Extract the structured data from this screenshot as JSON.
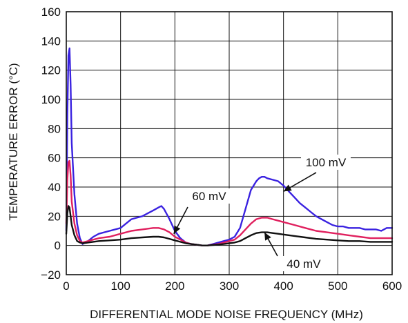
{
  "chart_data": {
    "type": "line",
    "title": "",
    "xlabel": "DIFFERENTIAL MODE NOISE FREQUENCY (MHz)",
    "ylabel": "TEMPERATURE ERROR (°C)",
    "xlim": [
      0,
      600
    ],
    "ylim": [
      -20,
      160
    ],
    "xticks": [
      0,
      100,
      200,
      300,
      400,
      500,
      600
    ],
    "yticks": [
      -20,
      0,
      20,
      40,
      60,
      80,
      100,
      120,
      140,
      160
    ],
    "ytick_labels": [
      "−20",
      "0",
      "20",
      "40",
      "60",
      "80",
      "100",
      "120",
      "140",
      "160"
    ],
    "grid": true,
    "legend": "none",
    "series": [
      {
        "name": "100 mV",
        "color": "#3a22e0",
        "x": [
          0,
          2,
          4,
          6,
          8,
          10,
          15,
          20,
          25,
          30,
          40,
          50,
          60,
          80,
          100,
          110,
          120,
          130,
          140,
          150,
          160,
          170,
          175,
          180,
          190,
          200,
          210,
          220,
          230,
          240,
          250,
          260,
          270,
          280,
          290,
          300,
          310,
          320,
          330,
          340,
          350,
          355,
          360,
          365,
          370,
          380,
          390,
          400,
          410,
          420,
          430,
          440,
          450,
          460,
          470,
          480,
          490,
          500,
          510,
          520,
          530,
          540,
          550,
          560,
          570,
          580,
          590,
          600
        ],
        "y": [
          10,
          90,
          130,
          135,
          110,
          70,
          35,
          15,
          5,
          1,
          3,
          6,
          8,
          10,
          12,
          15,
          18,
          19,
          20,
          22,
          24,
          26,
          27,
          25,
          18,
          10,
          5,
          2,
          1,
          0.5,
          0,
          0,
          1,
          2,
          3,
          4,
          6,
          12,
          25,
          38,
          44,
          46,
          47,
          47,
          46,
          45,
          44,
          41,
          37,
          33,
          29,
          26,
          23,
          20,
          18,
          16,
          14,
          13,
          13,
          12,
          12,
          12,
          11,
          11,
          11,
          10,
          12,
          12
        ]
      },
      {
        "name": "60 mV",
        "color": "#e0205e",
        "x": [
          0,
          2,
          4,
          6,
          8,
          10,
          15,
          20,
          25,
          30,
          40,
          50,
          60,
          80,
          100,
          120,
          140,
          160,
          170,
          180,
          190,
          200,
          210,
          220,
          230,
          240,
          250,
          260,
          270,
          280,
          290,
          300,
          310,
          320,
          330,
          340,
          350,
          360,
          370,
          380,
          390,
          400,
          420,
          440,
          460,
          480,
          500,
          520,
          540,
          560,
          580,
          600
        ],
        "y": [
          15,
          45,
          57,
          58,
          48,
          30,
          15,
          7,
          3,
          2,
          3,
          4,
          5,
          6,
          8,
          10,
          11,
          12,
          12,
          11,
          9,
          6,
          4,
          2,
          1,
          0.5,
          0,
          0,
          0.5,
          1,
          2,
          3,
          4,
          7,
          11,
          15,
          18,
          19,
          19,
          18,
          17,
          16,
          14,
          12,
          10,
          9,
          8,
          7,
          6,
          5,
          5,
          5
        ]
      },
      {
        "name": "40 mV",
        "color": "#111111",
        "x": [
          0,
          2,
          4,
          6,
          8,
          10,
          15,
          20,
          25,
          30,
          40,
          60,
          80,
          100,
          120,
          140,
          160,
          170,
          180,
          190,
          200,
          210,
          220,
          230,
          240,
          250,
          260,
          270,
          280,
          290,
          300,
          310,
          320,
          330,
          340,
          350,
          360,
          370,
          380,
          390,
          400,
          420,
          440,
          460,
          480,
          500,
          520,
          540,
          560,
          580,
          600
        ],
        "y": [
          8,
          22,
          27,
          26,
          20,
          14,
          7,
          3,
          2,
          1.5,
          2,
          3,
          3.5,
          4,
          5,
          5.5,
          6,
          6,
          5.5,
          4.5,
          3.5,
          2.5,
          1.5,
          1,
          0.5,
          0,
          0,
          0.3,
          0.6,
          1,
          1.5,
          2,
          3,
          5,
          7,
          8.5,
          9,
          9,
          8.5,
          8,
          7.5,
          6.5,
          5.5,
          4.5,
          4,
          3.5,
          3,
          3,
          2.5,
          2.5,
          2.5
        ]
      }
    ],
    "annotations": [
      {
        "text": "100 mV",
        "series": 0,
        "arrow_to_x": 400,
        "arrow_to_y": 37
      },
      {
        "text": "60 mV",
        "series": 1,
        "arrow_to_x": 198,
        "arrow_to_y": 8
      },
      {
        "text": "40 mV",
        "series": 2,
        "arrow_to_x": 365,
        "arrow_to_y": 9
      }
    ]
  }
}
